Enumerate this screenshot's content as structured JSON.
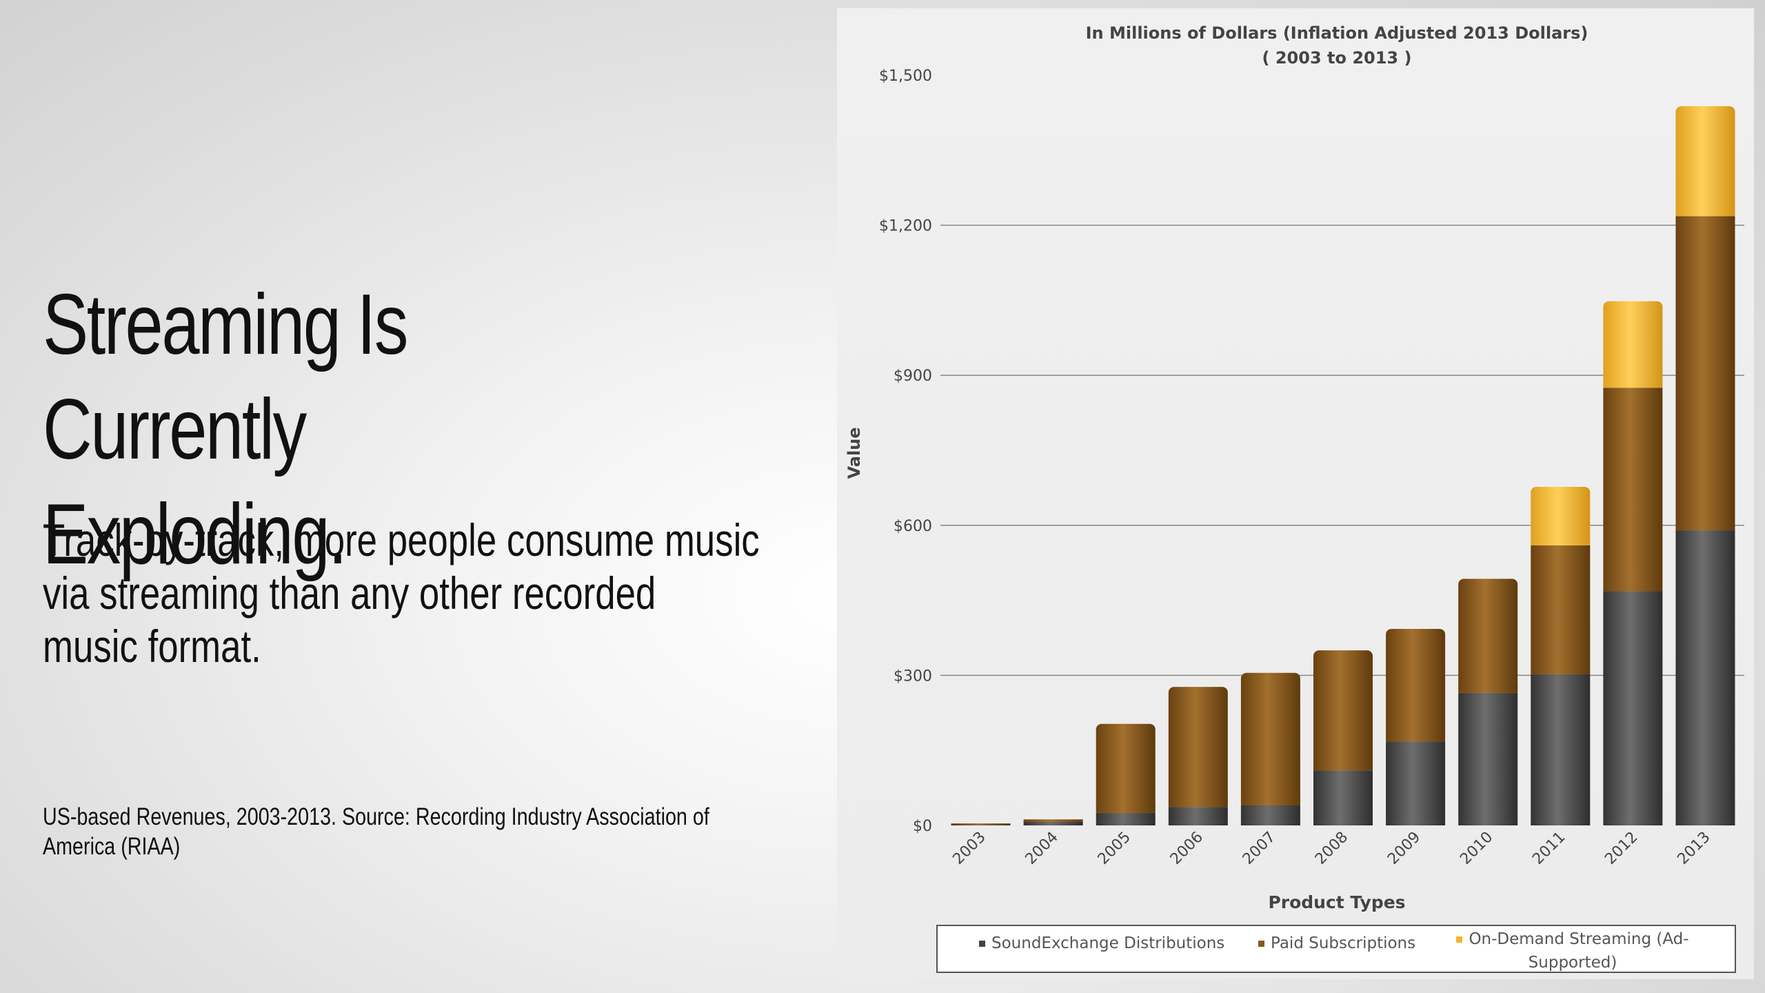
{
  "slide": {
    "title": "Streaming Is Currently\nExploding.",
    "body": "Track-by-track, more people consume music via streaming  than any other recorded music format.",
    "source": "US-based Revenues, 2003-2013. Source: Recording Industry Association of America (RIAA)"
  },
  "chart_data": {
    "type": "bar",
    "stacked": true,
    "title": "In Millions of Dollars (Inflation Adjusted 2013 Dollars)",
    "subtitle": "( 2003 to 2013 )",
    "xlabel": "Product Types",
    "ylabel": "Value",
    "ylim": [
      0,
      1500
    ],
    "y_ticks": [
      "$0",
      "$300",
      "$600",
      "$900",
      "$1,200",
      "$1,500"
    ],
    "y_tick_values": [
      0,
      300,
      600,
      900,
      1200,
      1500
    ],
    "grid": true,
    "legend_position": "bottom",
    "categories": [
      "2003",
      "2004",
      "2005",
      "2006",
      "2007",
      "2008",
      "2009",
      "2010",
      "2011",
      "2012",
      "2013"
    ],
    "series": [
      {
        "name": "SoundExchange Distributions",
        "color": "#5a5a5a",
        "values": [
          1,
          7,
          25,
          37,
          40,
          110,
          168,
          265,
          302,
          468,
          590
        ]
      },
      {
        "name": "Paid Subscriptions",
        "color": "#8a5a1c",
        "values": [
          3,
          5,
          178,
          240,
          265,
          240,
          225,
          228,
          258,
          407,
          628
        ]
      },
      {
        "name": "On-Demand Streaming (Ad-Supported)",
        "color": "#f2b42c",
        "values": [
          0,
          0,
          0,
          0,
          0,
          0,
          0,
          0,
          117,
          173,
          220
        ]
      }
    ]
  }
}
